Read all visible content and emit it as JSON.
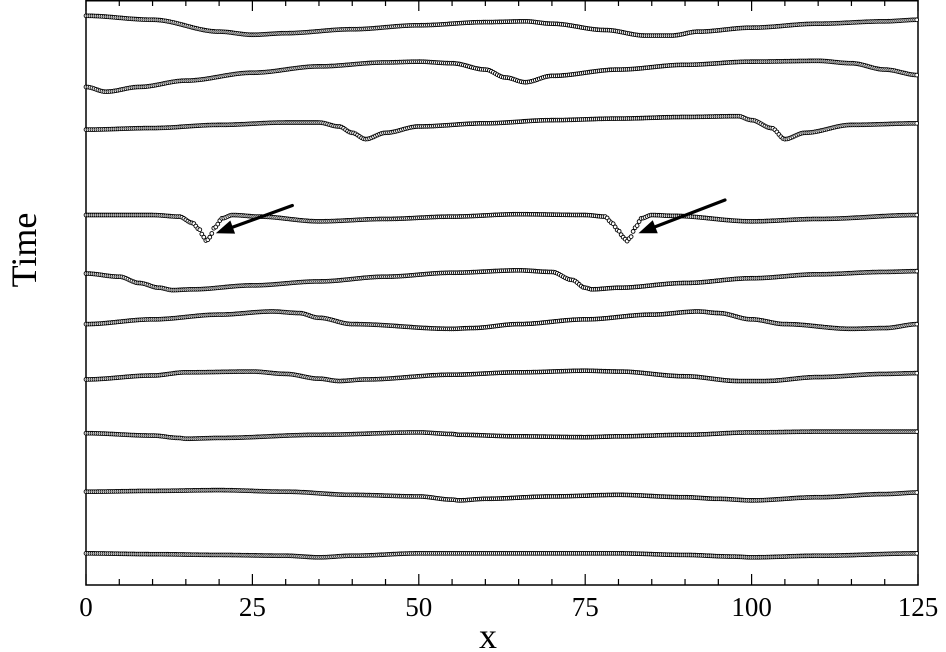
{
  "chart_data": {
    "type": "scatter",
    "title": "",
    "xlabel": "x",
    "ylabel": "Time",
    "xlim": [
      0,
      125
    ],
    "x_ticks": [
      "0",
      "25",
      "50",
      "75",
      "100",
      "125"
    ],
    "x_minor_step": 5,
    "y_tick_labels": false,
    "grid": false,
    "legend": "none",
    "marker": "open circle",
    "color": "#000000",
    "traces_order": "bottom trace is earliest time, top trace is latest",
    "series": [
      {
        "points": [
          [
            0,
            10.2
          ],
          [
            10,
            10.15
          ],
          [
            20,
            10.0
          ],
          [
            25,
            9.96
          ],
          [
            30,
            9.98
          ],
          [
            40,
            10.03
          ],
          [
            50,
            10.08
          ],
          [
            60,
            10.12
          ],
          [
            66,
            10.13
          ],
          [
            70,
            10.1
          ],
          [
            78,
            10.02
          ],
          [
            84,
            9.95
          ],
          [
            88,
            9.95
          ],
          [
            92,
            10.0
          ],
          [
            100,
            10.05
          ],
          [
            110,
            10.1
          ],
          [
            120,
            10.13
          ],
          [
            125,
            10.15
          ]
        ]
      },
      {
        "points": [
          [
            0,
            9.3
          ],
          [
            3,
            9.24
          ],
          [
            8,
            9.3
          ],
          [
            15,
            9.38
          ],
          [
            25,
            9.48
          ],
          [
            35,
            9.56
          ],
          [
            45,
            9.61
          ],
          [
            50,
            9.62
          ],
          [
            55,
            9.6
          ],
          [
            60,
            9.52
          ],
          [
            63,
            9.42
          ],
          [
            66,
            9.36
          ],
          [
            70,
            9.44
          ],
          [
            80,
            9.52
          ],
          [
            90,
            9.58
          ],
          [
            100,
            9.62
          ],
          [
            110,
            9.63
          ],
          [
            115,
            9.6
          ],
          [
            120,
            9.52
          ],
          [
            125,
            9.45
          ]
        ]
      },
      {
        "points": [
          [
            0,
            8.76
          ],
          [
            10,
            8.78
          ],
          [
            20,
            8.82
          ],
          [
            30,
            8.85
          ],
          [
            35,
            8.85
          ],
          [
            38,
            8.8
          ],
          [
            40,
            8.72
          ],
          [
            42,
            8.64
          ],
          [
            45,
            8.72
          ],
          [
            50,
            8.8
          ],
          [
            60,
            8.84
          ],
          [
            70,
            8.88
          ],
          [
            80,
            8.9
          ],
          [
            90,
            8.92
          ],
          [
            98,
            8.93
          ],
          [
            100,
            8.88
          ],
          [
            103,
            8.78
          ],
          [
            105,
            8.64
          ],
          [
            108,
            8.72
          ],
          [
            115,
            8.82
          ],
          [
            125,
            8.84
          ]
        ]
      },
      {
        "points": [
          [
            0,
            7.68
          ],
          [
            10,
            7.68
          ],
          [
            14,
            7.66
          ],
          [
            16,
            7.58
          ],
          [
            17,
            7.5
          ],
          [
            17.7,
            7.4
          ],
          [
            18.1,
            7.35
          ],
          [
            18.6,
            7.4
          ],
          [
            19.3,
            7.52
          ],
          [
            20.5,
            7.64
          ],
          [
            22,
            7.68
          ],
          [
            26,
            7.66
          ],
          [
            35,
            7.6
          ],
          [
            45,
            7.63
          ],
          [
            55,
            7.66
          ],
          [
            65,
            7.69
          ],
          [
            75,
            7.68
          ],
          [
            78,
            7.66
          ],
          [
            79,
            7.58
          ],
          [
            80,
            7.48
          ],
          [
            80.7,
            7.4
          ],
          [
            81.3,
            7.35
          ],
          [
            81.8,
            7.4
          ],
          [
            82.5,
            7.52
          ],
          [
            83.5,
            7.64
          ],
          [
            85,
            7.68
          ],
          [
            88,
            7.67
          ],
          [
            100,
            7.6
          ],
          [
            110,
            7.63
          ],
          [
            125,
            7.68
          ]
        ]
      },
      {
        "points": [
          [
            0,
            6.94
          ],
          [
            5,
            6.9
          ],
          [
            8,
            6.82
          ],
          [
            11,
            6.76
          ],
          [
            13,
            6.73
          ],
          [
            16,
            6.74
          ],
          [
            25,
            6.79
          ],
          [
            35,
            6.84
          ],
          [
            45,
            6.9
          ],
          [
            55,
            6.95
          ],
          [
            65,
            6.98
          ],
          [
            70,
            6.96
          ],
          [
            73,
            6.86
          ],
          [
            75,
            6.76
          ],
          [
            76,
            6.74
          ],
          [
            80,
            6.76
          ],
          [
            90,
            6.82
          ],
          [
            100,
            6.88
          ],
          [
            110,
            6.93
          ],
          [
            120,
            6.96
          ],
          [
            125,
            6.97
          ]
        ]
      },
      {
        "points": [
          [
            0,
            6.3
          ],
          [
            10,
            6.36
          ],
          [
            20,
            6.42
          ],
          [
            28,
            6.46
          ],
          [
            32,
            6.44
          ],
          [
            35,
            6.38
          ],
          [
            40,
            6.3
          ],
          [
            55,
            6.24
          ],
          [
            58,
            6.25
          ],
          [
            65,
            6.3
          ],
          [
            75,
            6.36
          ],
          [
            85,
            6.42
          ],
          [
            92,
            6.46
          ],
          [
            95,
            6.44
          ],
          [
            100,
            6.36
          ],
          [
            105,
            6.3
          ],
          [
            115,
            6.24
          ],
          [
            120,
            6.25
          ],
          [
            125,
            6.3
          ]
        ]
      },
      {
        "points": [
          [
            0,
            5.6
          ],
          [
            10,
            5.65
          ],
          [
            15,
            5.69
          ],
          [
            25,
            5.7
          ],
          [
            30,
            5.67
          ],
          [
            35,
            5.61
          ],
          [
            38,
            5.58
          ],
          [
            42,
            5.6
          ],
          [
            55,
            5.66
          ],
          [
            65,
            5.69
          ],
          [
            75,
            5.71
          ],
          [
            80,
            5.7
          ],
          [
            90,
            5.64
          ],
          [
            98,
            5.58
          ],
          [
            102,
            5.58
          ],
          [
            110,
            5.63
          ],
          [
            120,
            5.67
          ],
          [
            125,
            5.68
          ]
        ]
      },
      {
        "points": [
          [
            0,
            4.92
          ],
          [
            10,
            4.89
          ],
          [
            14,
            4.86
          ],
          [
            15,
            4.85
          ],
          [
            20,
            4.86
          ],
          [
            35,
            4.9
          ],
          [
            50,
            4.93
          ],
          [
            55,
            4.91
          ],
          [
            56,
            4.9
          ],
          [
            65,
            4.88
          ],
          [
            75,
            4.87
          ],
          [
            80,
            4.88
          ],
          [
            90,
            4.9
          ],
          [
            100,
            4.93
          ],
          [
            110,
            4.94
          ],
          [
            125,
            4.94
          ]
        ]
      },
      {
        "points": [
          [
            0,
            4.18
          ],
          [
            10,
            4.19
          ],
          [
            20,
            4.2
          ],
          [
            30,
            4.18
          ],
          [
            40,
            4.14
          ],
          [
            50,
            4.12
          ],
          [
            55,
            4.08
          ],
          [
            56,
            4.07
          ],
          [
            60,
            4.09
          ],
          [
            70,
            4.12
          ],
          [
            80,
            4.14
          ],
          [
            90,
            4.11
          ],
          [
            95,
            4.09
          ],
          [
            100,
            4.07
          ],
          [
            110,
            4.11
          ],
          [
            120,
            4.15
          ],
          [
            125,
            4.17
          ]
        ]
      },
      {
        "points": [
          [
            0,
            3.4
          ],
          [
            10,
            3.39
          ],
          [
            20,
            3.38
          ],
          [
            30,
            3.37
          ],
          [
            35,
            3.35
          ],
          [
            40,
            3.37
          ],
          [
            50,
            3.4
          ],
          [
            60,
            3.4
          ],
          [
            70,
            3.4
          ],
          [
            80,
            3.4
          ],
          [
            90,
            3.38
          ],
          [
            97,
            3.36
          ],
          [
            100,
            3.35
          ],
          [
            110,
            3.37
          ],
          [
            125,
            3.4
          ]
        ]
      }
    ],
    "annotations": [
      {
        "type": "arrow",
        "from": [
          31,
          7.8
        ],
        "to": [
          19.5,
          7.45
        ]
      },
      {
        "type": "arrow",
        "from": [
          96,
          7.87
        ],
        "to": [
          83,
          7.45
        ]
      }
    ]
  }
}
